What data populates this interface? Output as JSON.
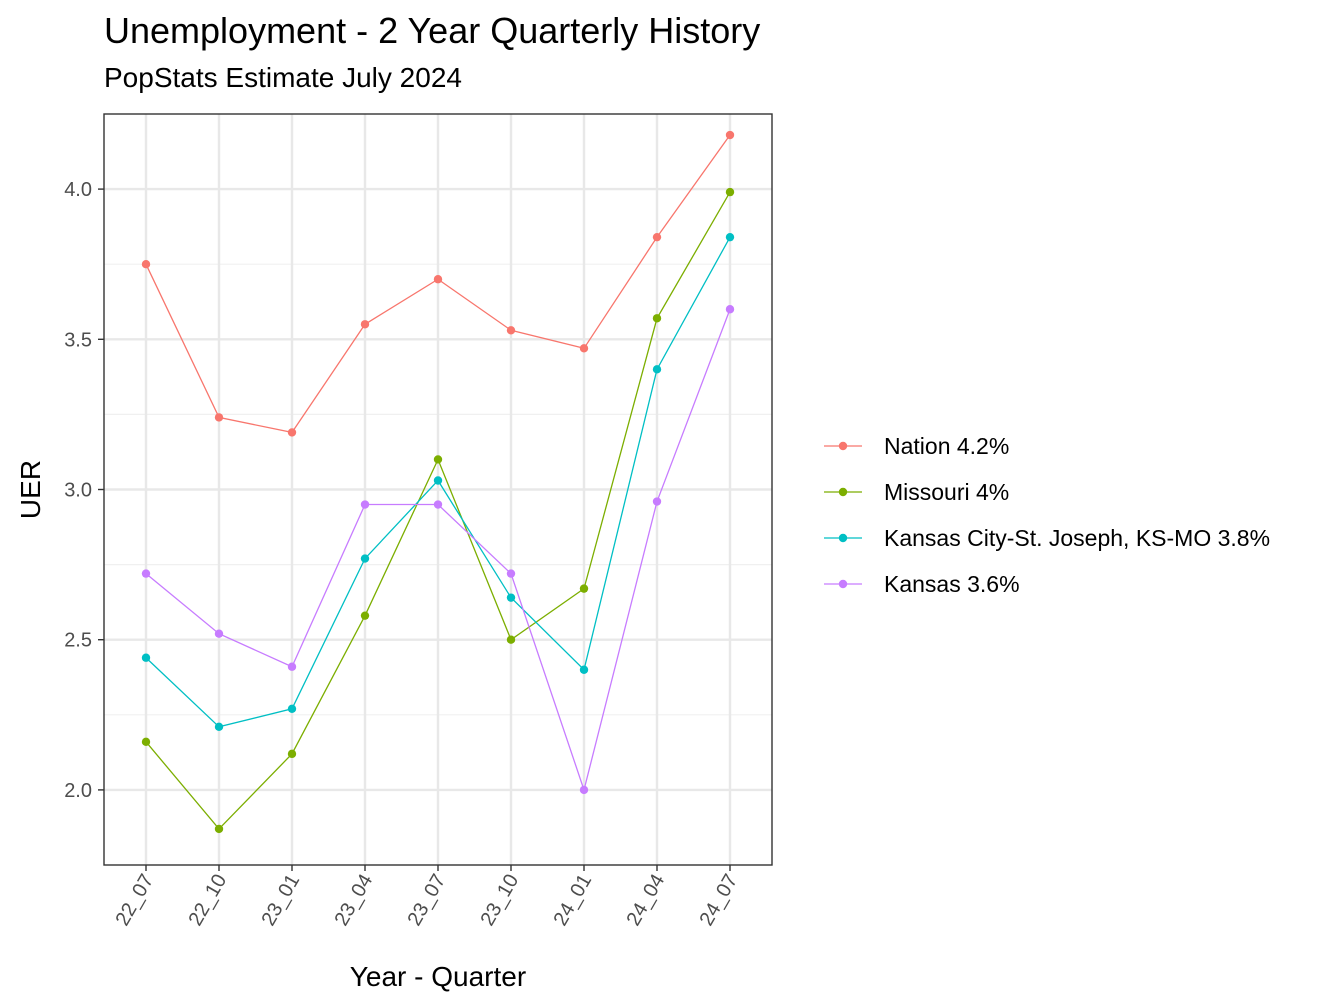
{
  "chart_data": {
    "type": "line",
    "title": "Unemployment - 2 Year Quarterly History",
    "subtitle": "PopStats Estimate July 2024",
    "xlabel": "Year - Quarter",
    "ylabel": "UER",
    "categories": [
      "22_07",
      "22_10",
      "23_01",
      "23_04",
      "23_07",
      "23_10",
      "24_01",
      "24_04",
      "24_07"
    ],
    "ylim": [
      1.75,
      4.25
    ],
    "yticks": [
      2.0,
      2.5,
      3.0,
      3.5,
      4.0
    ],
    "grid": true,
    "legend_position": "right",
    "series": [
      {
        "name": "Nation 4.2%",
        "color": "#F8766D",
        "values": [
          3.75,
          3.24,
          3.19,
          3.55,
          3.7,
          3.53,
          3.47,
          3.84,
          4.18
        ]
      },
      {
        "name": "Missouri 4%",
        "color": "#7CAE00",
        "values": [
          2.16,
          1.87,
          2.12,
          2.58,
          3.1,
          2.5,
          2.67,
          3.57,
          3.99
        ]
      },
      {
        "name": "Kansas City-St. Joseph, KS-MO 3.8%",
        "color": "#00BFC4",
        "values": [
          2.44,
          2.21,
          2.27,
          2.77,
          3.03,
          2.64,
          2.4,
          3.4,
          3.84
        ]
      },
      {
        "name": "Kansas 3.6%",
        "color": "#C77CFF",
        "values": [
          2.72,
          2.52,
          2.41,
          2.95,
          2.95,
          2.72,
          2.0,
          2.96,
          3.6
        ]
      }
    ]
  }
}
